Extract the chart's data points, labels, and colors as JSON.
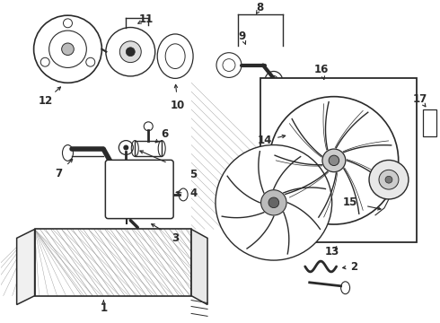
{
  "background_color": "#ffffff",
  "line_color": "#2a2a2a",
  "label_color": "#111111",
  "font_size": 8.5,
  "fig_w": 4.9,
  "fig_h": 3.6,
  "dpi": 100
}
